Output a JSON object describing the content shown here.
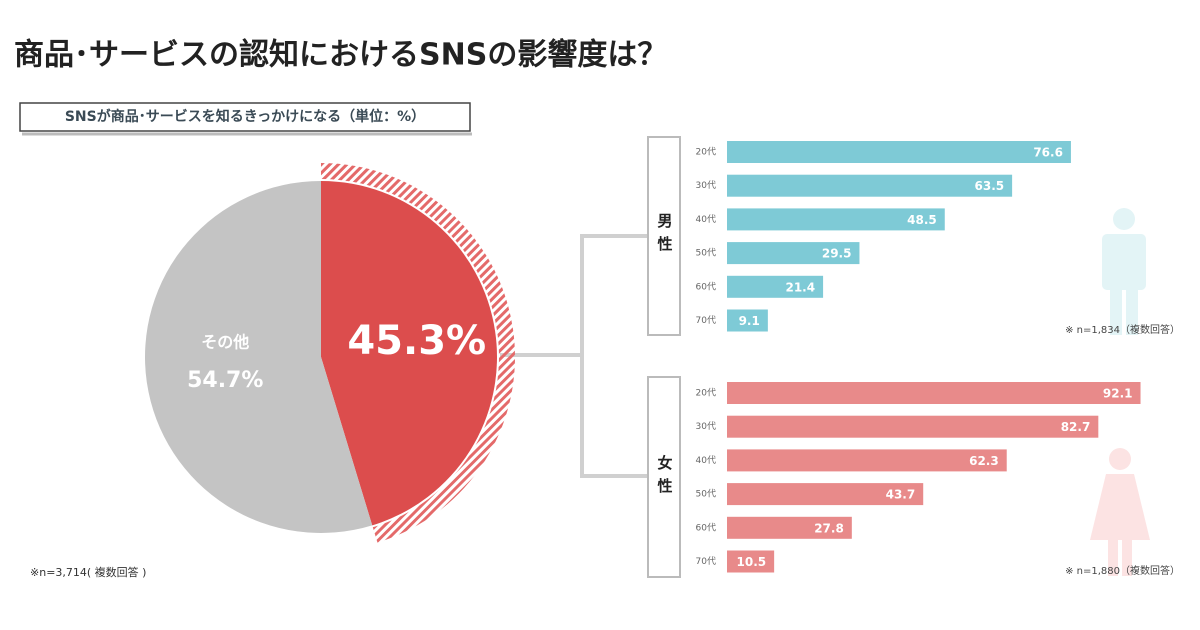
{
  "title": "商品･サービスの認知におけるSNSの影響度は？",
  "chart_data": [
    {
      "type": "pie",
      "subtitle": "SNSが商品･サービスを知るきっかけになる（単位：%）",
      "categories": [
        null,
        "その他"
      ],
      "values": [
        45.3,
        54.7
      ],
      "value_labels": [
        "45.3%",
        "54.7%"
      ],
      "colors": [
        "#dc4d4d",
        "#c4c4c4"
      ],
      "highlight": 0,
      "note": "※n=3,714( 複数回答 )"
    },
    {
      "type": "bar",
      "title": "男性",
      "categories": [
        "20代",
        "30代",
        "40代",
        "50代",
        "60代",
        "70代"
      ],
      "values": [
        76.6,
        63.5,
        48.5,
        29.5,
        21.4,
        9.1
      ],
      "color": "#7ecad6",
      "note": "※ n=1,834（複数回答）"
    },
    {
      "type": "bar",
      "title": "女性",
      "categories": [
        "20代",
        "30代",
        "40代",
        "50代",
        "60代",
        "70代"
      ],
      "values": [
        92.1,
        82.7,
        62.3,
        43.7,
        27.8,
        10.5
      ],
      "color": "#e88a8a",
      "note": "※ n=1,880（複数回答）"
    }
  ]
}
